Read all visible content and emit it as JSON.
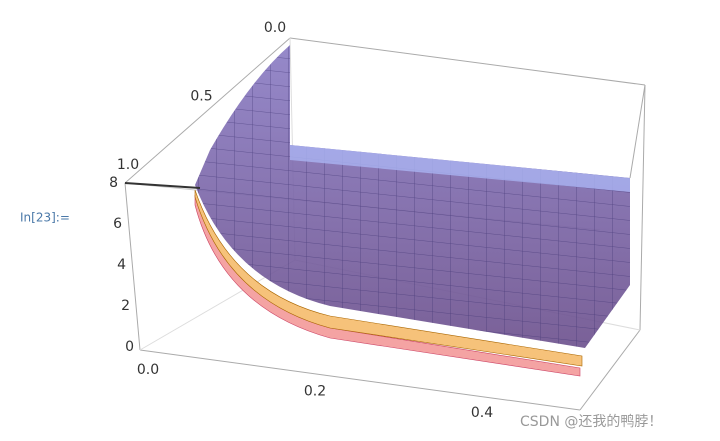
{
  "cell_label": "In[23]:=",
  "plot": {
    "z_ticks": [
      "8",
      "6",
      "4",
      "2",
      "0"
    ],
    "x_ticks": [
      "0.0",
      "0.2",
      "0.4"
    ],
    "y_ticks": [
      "0.0",
      "0.5",
      "1.0"
    ]
  },
  "watermark": "CSDN @还我的鸭脖！"
}
